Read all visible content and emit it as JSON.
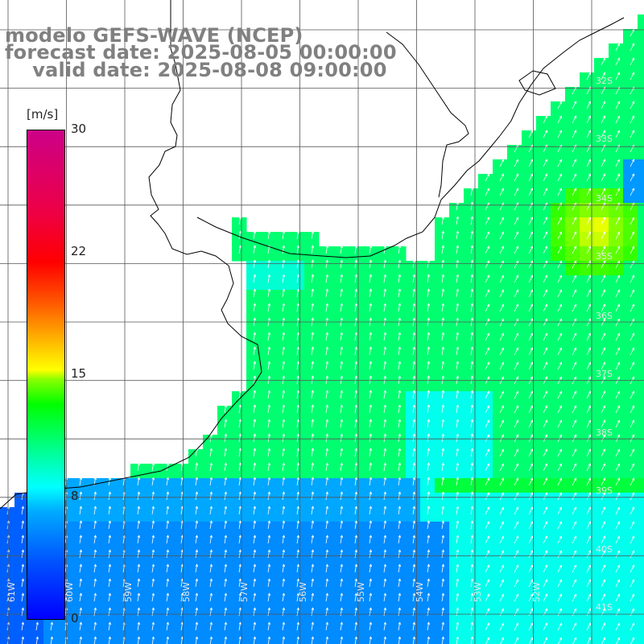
{
  "title": {
    "line1": "modelo GEFS-WAVE (NCEP)",
    "line2": "forecast date: 2025-08-05 00:00:00",
    "line3": "    valid date: 2025-08-08 09:00:00"
  },
  "colorbar": {
    "unit": "[m/s]",
    "ticks": [
      "30",
      "22",
      "15",
      "8",
      "0"
    ],
    "tick_values": [
      30,
      22,
      15,
      8,
      0
    ],
    "min": 0,
    "max": 30
  },
  "lat_labels": [
    "32S",
    "33S",
    "34S",
    "35S",
    "36S",
    "37S",
    "38S",
    "39S",
    "40S",
    "41S"
  ],
  "lon_labels": [
    "61W",
    "60W",
    "59W",
    "58W",
    "57W",
    "56W",
    "55W",
    "54W",
    "53W",
    "52W"
  ],
  "colors": {
    "land": "#ffffff",
    "coast": "#000000",
    "grid": "#555555",
    "arrows": "#ffffff",
    "title": "#808080"
  }
}
